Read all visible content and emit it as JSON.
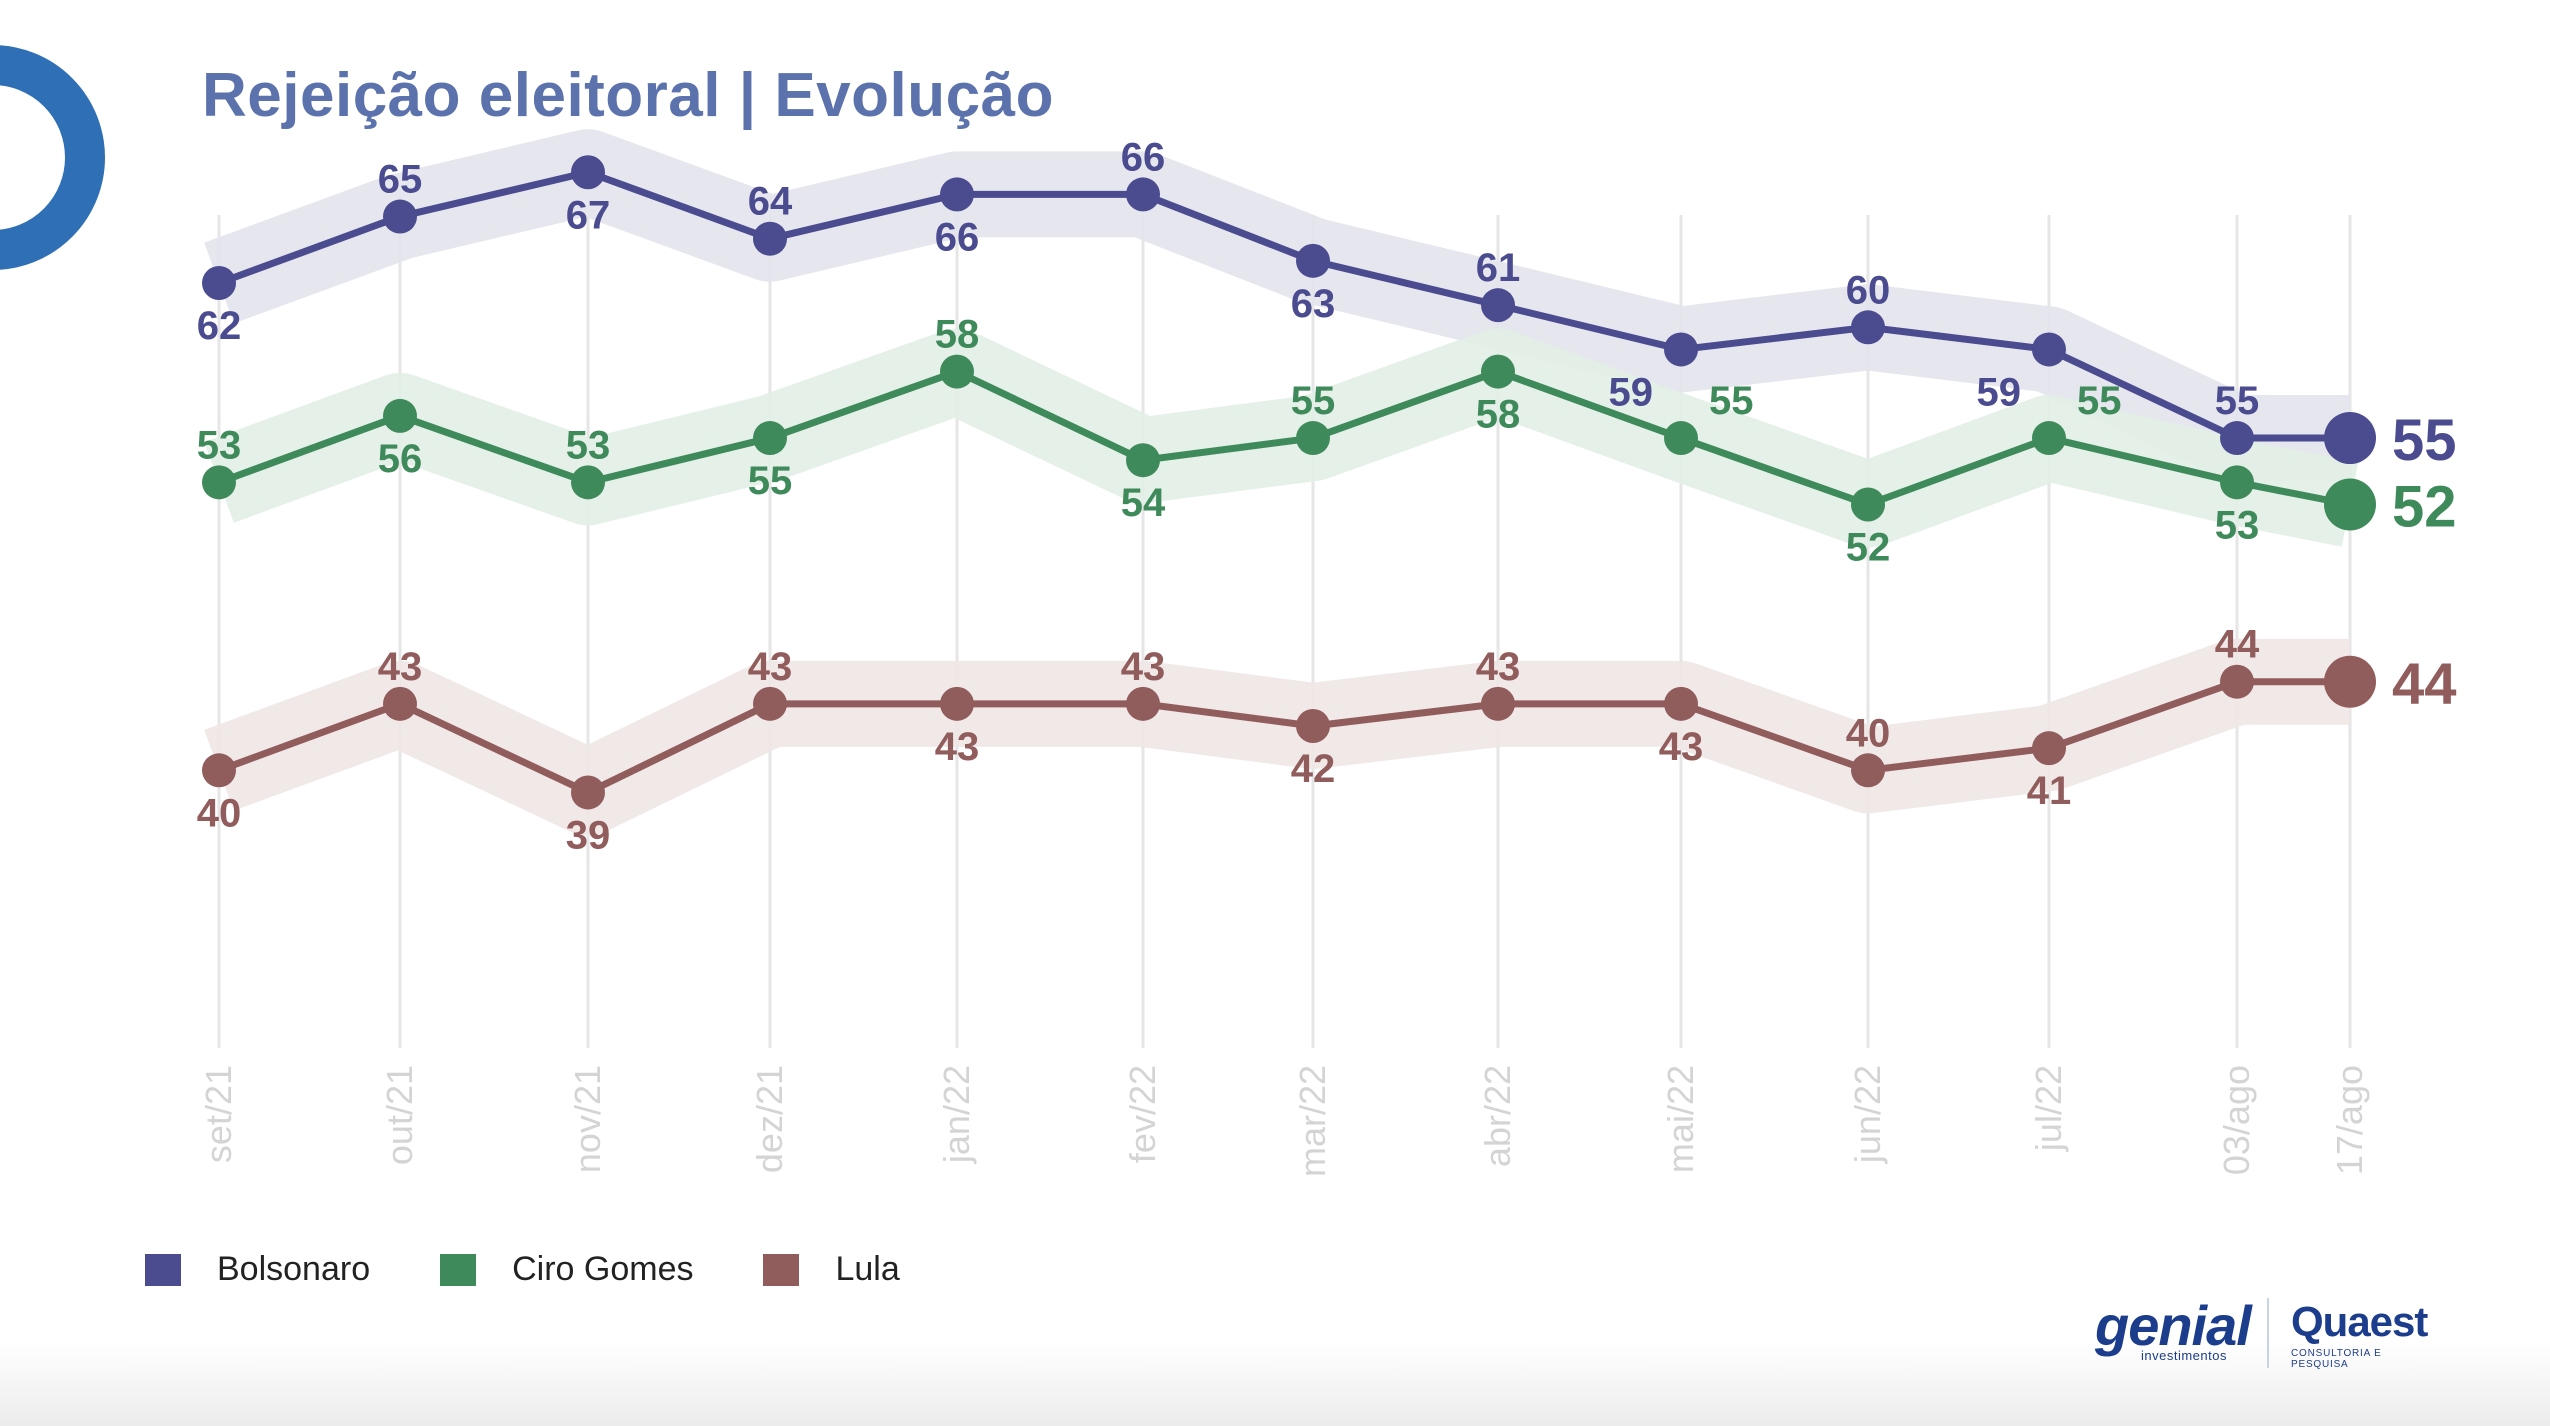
{
  "title": "Rejeição eleitoral | Evolução",
  "chart_data": {
    "type": "line",
    "title": "Rejeição eleitoral | Evolução",
    "categories": [
      "set/21",
      "out/21",
      "nov/21",
      "dez/21",
      "jan/22",
      "fev/22",
      "mar/22",
      "abr/22",
      "mai/22",
      "jun/22",
      "jul/22",
      "03/ago",
      "17/ago"
    ],
    "ylim": [
      35,
      72
    ],
    "grid": "vertical",
    "xlabel": "",
    "ylabel": "",
    "series": [
      {
        "name": "Bolsonaro",
        "color": "#4b4b8f",
        "band_color": "#e3e3ec",
        "values": [
          62,
          65,
          67,
          64,
          66,
          66,
          63,
          61,
          59,
          60,
          59,
          55,
          55
        ],
        "label_positions": [
          "below",
          "above",
          "below",
          "above",
          "below",
          "above",
          "below",
          "above",
          "left",
          "above",
          "left",
          "above",
          "right"
        ]
      },
      {
        "name": "Ciro Gomes",
        "color": "#3f8a5b",
        "band_color": "#e2eee5",
        "values": [
          53,
          56,
          53,
          55,
          58,
          54,
          55,
          58,
          55,
          52,
          55,
          53,
          52
        ],
        "label_positions": [
          "above",
          "below",
          "above",
          "below",
          "above",
          "below",
          "above",
          "below",
          "right",
          "below",
          "right",
          "below",
          "right"
        ]
      },
      {
        "name": "Lula",
        "color": "#915c5c",
        "band_color": "#f0e5e5",
        "values": [
          40,
          43,
          39,
          43,
          43,
          43,
          42,
          43,
          43,
          40,
          41,
          44,
          44
        ],
        "label_positions": [
          "below",
          "above",
          "below",
          "above",
          "below",
          "above",
          "below",
          "above",
          "below",
          "above",
          "below",
          "above",
          "right"
        ]
      }
    ]
  },
  "legend": {
    "items": [
      {
        "label": "Bolsonaro",
        "color": "#4b4b8f"
      },
      {
        "label": "Ciro Gomes",
        "color": "#3f8a5b"
      },
      {
        "label": "Lula",
        "color": "#915c5c"
      }
    ]
  },
  "logos": {
    "genial": {
      "name": "genial",
      "subtitle": "investimentos"
    },
    "quaest": {
      "name": "Quaest",
      "subtitle": "CONSULTORIA E PESQUISA"
    }
  }
}
